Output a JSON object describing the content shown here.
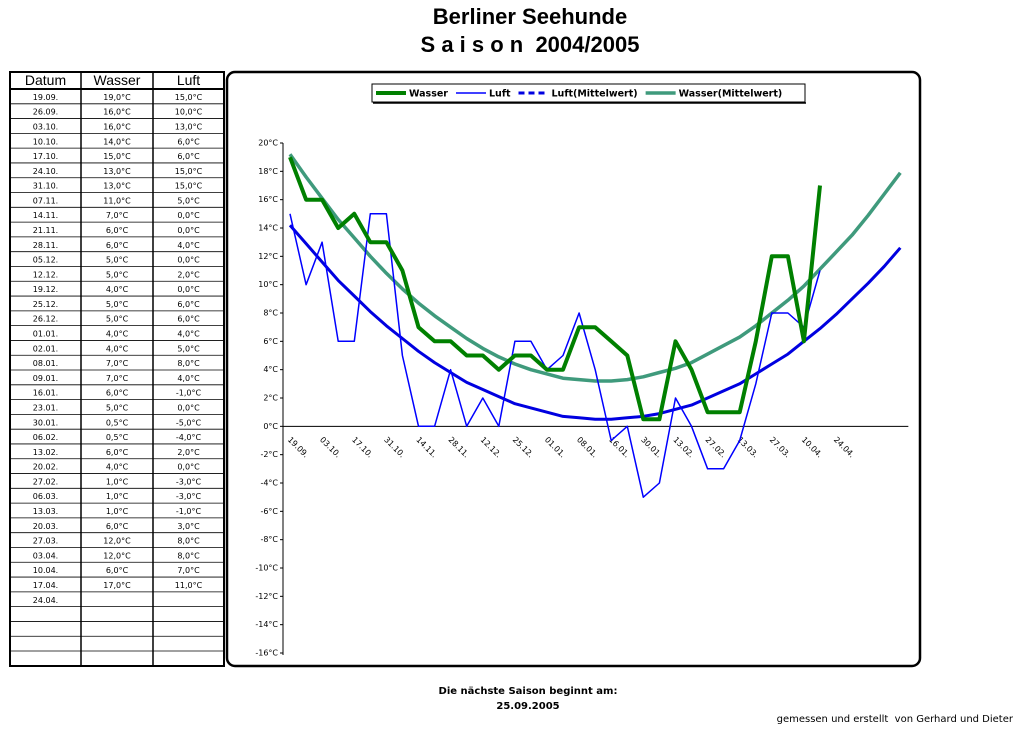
{
  "title": "Berliner Seehunde",
  "subtitle": "S a i s o n  2004/2005",
  "table": {
    "columns": [
      "Datum",
      "Wasser",
      "Luft"
    ],
    "rows": [
      [
        "19.09.",
        "19,0°C",
        "15,0°C"
      ],
      [
        "26.09.",
        "16,0°C",
        "10,0°C"
      ],
      [
        "03.10.",
        "16,0°C",
        "13,0°C"
      ],
      [
        "10.10.",
        "14,0°C",
        "6,0°C"
      ],
      [
        "17.10.",
        "15,0°C",
        "6,0°C"
      ],
      [
        "24.10.",
        "13,0°C",
        "15,0°C"
      ],
      [
        "31.10.",
        "13,0°C",
        "15,0°C"
      ],
      [
        "07.11.",
        "11,0°C",
        "5,0°C"
      ],
      [
        "14.11.",
        "7,0°C",
        "0,0°C"
      ],
      [
        "21.11.",
        "6,0°C",
        "0,0°C"
      ],
      [
        "28.11.",
        "6,0°C",
        "4,0°C"
      ],
      [
        "05.12.",
        "5,0°C",
        "0,0°C"
      ],
      [
        "12.12.",
        "5,0°C",
        "2,0°C"
      ],
      [
        "19.12.",
        "4,0°C",
        "0,0°C"
      ],
      [
        "25.12.",
        "5,0°C",
        "6,0°C"
      ],
      [
        "26.12.",
        "5,0°C",
        "6,0°C"
      ],
      [
        "01.01.",
        "4,0°C",
        "4,0°C"
      ],
      [
        "02.01.",
        "4,0°C",
        "5,0°C"
      ],
      [
        "08.01.",
        "7,0°C",
        "8,0°C"
      ],
      [
        "09.01.",
        "7,0°C",
        "4,0°C"
      ],
      [
        "16.01.",
        "6,0°C",
        "-1,0°C"
      ],
      [
        "23.01.",
        "5,0°C",
        "0,0°C"
      ],
      [
        "30.01.",
        "0,5°C",
        "-5,0°C"
      ],
      [
        "06.02.",
        "0,5°C",
        "-4,0°C"
      ],
      [
        "13.02.",
        "6,0°C",
        "2,0°C"
      ],
      [
        "20.02.",
        "4,0°C",
        "0,0°C"
      ],
      [
        "27.02.",
        "1,0°C",
        "-3,0°C"
      ],
      [
        "06.03.",
        "1,0°C",
        "-3,0°C"
      ],
      [
        "13.03.",
        "1,0°C",
        "-1,0°C"
      ],
      [
        "20.03.",
        "6,0°C",
        "3,0°C"
      ],
      [
        "27.03.",
        "12,0°C",
        "8,0°C"
      ],
      [
        "03.04.",
        "12,0°C",
        "8,0°C"
      ],
      [
        "10.04.",
        "6,0°C",
        "7,0°C"
      ],
      [
        "17.04.",
        "17,0°C",
        "11,0°C"
      ],
      [
        "24.04."
      ]
    ]
  },
  "chart_data": {
    "type": "line",
    "categories": [
      "19.09.",
      null,
      "03.10.",
      null,
      "17.10.",
      null,
      "31.10.",
      null,
      "14.11.",
      null,
      "28.11.",
      null,
      "12.12.",
      null,
      "25.12.",
      null,
      "01.01.",
      null,
      "08.01.",
      null,
      "16.01.",
      null,
      "30.01.",
      null,
      "13.02.",
      null,
      "27.02.",
      null,
      "13.03.",
      null,
      "27.03.",
      null,
      "10.04.",
      null,
      "24.04.",
      null,
      null,
      null,
      null
    ],
    "ylim": [
      -16,
      20
    ],
    "yticks": [
      {
        "value": -16,
        "label": "-16°C"
      },
      {
        "value": -14,
        "label": "-14°C"
      },
      {
        "value": -12,
        "label": "-12°C"
      },
      {
        "value": -10,
        "label": "-10°C"
      },
      {
        "value": -8,
        "label": "-8°C"
      },
      {
        "value": -6,
        "label": "-6°C"
      },
      {
        "value": -4,
        "label": "-4°C"
      },
      {
        "value": -2,
        "label": "-2°C"
      },
      {
        "value": 0,
        "label": "0°C"
      },
      {
        "value": 2,
        "label": "2°C"
      },
      {
        "value": 4,
        "label": "4°C"
      },
      {
        "value": 6,
        "label": "6°C"
      },
      {
        "value": 8,
        "label": "8°C"
      },
      {
        "value": 10,
        "label": "10°C"
      },
      {
        "value": 12,
        "label": "12°C"
      },
      {
        "value": 14,
        "label": "14°C"
      },
      {
        "value": 16,
        "label": "16°C"
      },
      {
        "value": 18,
        "label": "18°C"
      },
      {
        "value": 20,
        "label": "20°C"
      }
    ],
    "negative_tick_color": "#ff0000",
    "legend": "top",
    "series": [
      {
        "name": "Wasser",
        "color": "#008000",
        "width": 4,
        "values": [
          19,
          16,
          16,
          14,
          15,
          13,
          13,
          11,
          7,
          6,
          6,
          5,
          5,
          4,
          5,
          5,
          4,
          4,
          7,
          7,
          6,
          5,
          0.5,
          0.5,
          6,
          4,
          1,
          1,
          1,
          6,
          12,
          12,
          6,
          17,
          null,
          null,
          null,
          null,
          null
        ]
      },
      {
        "name": "Luft",
        "color": "#0000ff",
        "width": 1.5,
        "values": [
          15,
          10,
          13,
          6,
          6,
          15,
          15,
          5,
          0,
          0,
          4,
          0,
          2,
          0,
          6,
          6,
          4,
          5,
          8,
          4,
          -1,
          0,
          -5,
          -4,
          2,
          0,
          -3,
          -3,
          -1,
          3,
          8,
          8,
          7,
          11,
          null,
          null,
          null,
          null,
          null
        ]
      },
      {
        "name": "Luft(Mittelwert)",
        "color": "#0000e0",
        "width": 3,
        "legend_dash": true,
        "values": [
          14.2,
          12.9,
          11.6,
          10.3,
          9.2,
          8.1,
          7.1,
          6.2,
          5.3,
          4.5,
          3.8,
          3.1,
          2.6,
          2.1,
          1.6,
          1.3,
          1.0,
          0.7,
          0.6,
          0.5,
          0.5,
          0.6,
          0.7,
          0.9,
          1.2,
          1.5,
          2.0,
          2.5,
          3.0,
          3.7,
          4.4,
          5.1,
          6.0,
          6.9,
          7.9,
          9.0,
          10.1,
          11.3,
          12.6
        ]
      },
      {
        "name": "Wasser(Mittelwert)",
        "color": "#3f9a7c",
        "width": 3.5,
        "values": [
          19.2,
          17.6,
          16.1,
          14.6,
          13.3,
          12.0,
          10.8,
          9.7,
          8.7,
          7.8,
          7.0,
          6.2,
          5.5,
          4.9,
          4.4,
          4.0,
          3.7,
          3.4,
          3.3,
          3.2,
          3.2,
          3.3,
          3.5,
          3.8,
          4.1,
          4.5,
          5.1,
          5.7,
          6.3,
          7.1,
          8.0,
          8.9,
          9.9,
          11.1,
          12.3,
          13.5,
          14.9,
          16.4,
          17.9
        ]
      }
    ]
  },
  "footer": {
    "line1": "Die nächste Saison beginnt am:",
    "line2": "25.09.2005",
    "credit": "gemessen und erstellt  von Gerhard und Dieter"
  }
}
